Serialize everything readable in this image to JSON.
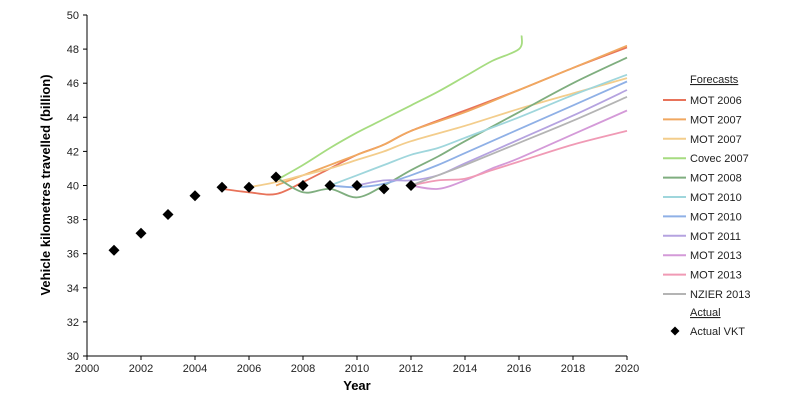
{
  "chart_data": {
    "type": "line",
    "xlabel": "Year",
    "ylabel": "Vehicle kilometres travelled (billion)",
    "xlim": [
      2000,
      2020
    ],
    "ylim": [
      30,
      50
    ],
    "xticks": [
      "2000",
      "2002",
      "2004",
      "2006",
      "2008",
      "2010",
      "2012",
      "2014",
      "2016",
      "2018",
      "2020"
    ],
    "yticks": [
      "30",
      "32",
      "34",
      "36",
      "38",
      "40",
      "42",
      "44",
      "46",
      "48",
      "50"
    ],
    "legend_heading_forecasts": "Forecasts",
    "legend_heading_actual": "Actual",
    "legend_position": "right",
    "series": [
      {
        "name": "MOT 2006",
        "color": "#e8735a",
        "points": [
          [
            2005,
            39.8
          ],
          [
            2006,
            39.6
          ],
          [
            2007,
            39.5
          ],
          [
            2008,
            40.2
          ],
          [
            2009,
            41.0
          ],
          [
            2010,
            41.8
          ],
          [
            2011,
            42.4
          ],
          [
            2012,
            43.2
          ],
          [
            2014,
            44.4
          ],
          [
            2016,
            45.6
          ],
          [
            2018,
            46.9
          ],
          [
            2020,
            48.1
          ]
        ]
      },
      {
        "name": "MOT 2007",
        "color": "#f0a860",
        "points": [
          [
            2007,
            40.0
          ],
          [
            2008,
            40.6
          ],
          [
            2009,
            41.2
          ],
          [
            2010,
            41.8
          ],
          [
            2011,
            42.4
          ],
          [
            2012,
            43.2
          ],
          [
            2014,
            44.3
          ],
          [
            2016,
            45.6
          ],
          [
            2018,
            46.9
          ],
          [
            2020,
            48.2
          ]
        ]
      },
      {
        "name": "MOT 2007",
        "color": "#f3cd8c",
        "points": [
          [
            2006,
            39.9
          ],
          [
            2007,
            40.2
          ],
          [
            2008,
            40.6
          ],
          [
            2009,
            41.0
          ],
          [
            2010,
            41.5
          ],
          [
            2011,
            42.0
          ],
          [
            2012,
            42.6
          ],
          [
            2014,
            43.5
          ],
          [
            2016,
            44.5
          ],
          [
            2018,
            45.4
          ],
          [
            2020,
            46.3
          ]
        ]
      },
      {
        "name": "Covec 2007",
        "color": "#a6dc80",
        "points": [
          [
            2007,
            40.3
          ],
          [
            2008,
            41.2
          ],
          [
            2009,
            42.2
          ],
          [
            2010,
            43.1
          ],
          [
            2011,
            43.9
          ],
          [
            2012,
            44.7
          ],
          [
            2013,
            45.5
          ],
          [
            2014,
            46.4
          ],
          [
            2015,
            47.3
          ],
          [
            2016,
            48.0
          ],
          [
            2016.1,
            48.8
          ]
        ]
      },
      {
        "name": "MOT 2008",
        "color": "#7fae7f",
        "points": [
          [
            2007,
            40.5
          ],
          [
            2008,
            39.6
          ],
          [
            2009,
            39.8
          ],
          [
            2010,
            39.3
          ],
          [
            2011,
            40.0
          ],
          [
            2012,
            40.9
          ],
          [
            2013,
            41.7
          ],
          [
            2014,
            42.6
          ],
          [
            2016,
            44.3
          ],
          [
            2018,
            46.0
          ],
          [
            2020,
            47.5
          ]
        ]
      },
      {
        "name": "MOT 2010",
        "color": "#9fd6dc",
        "points": [
          [
            2009,
            40.0
          ],
          [
            2010,
            40.6
          ],
          [
            2011,
            41.2
          ],
          [
            2012,
            41.8
          ],
          [
            2013,
            42.2
          ],
          [
            2014,
            42.8
          ],
          [
            2016,
            44.0
          ],
          [
            2018,
            45.3
          ],
          [
            2020,
            46.5
          ]
        ]
      },
      {
        "name": "MOT 2010",
        "color": "#8fb0e6",
        "points": [
          [
            2009,
            40.0
          ],
          [
            2010,
            39.9
          ],
          [
            2011,
            40.1
          ],
          [
            2012,
            40.6
          ],
          [
            2013,
            41.2
          ],
          [
            2014,
            41.9
          ],
          [
            2016,
            43.3
          ],
          [
            2018,
            44.7
          ],
          [
            2020,
            46.1
          ]
        ]
      },
      {
        "name": "MOT 2011",
        "color": "#b5a3e0",
        "points": [
          [
            2010,
            40.0
          ],
          [
            2011,
            40.3
          ],
          [
            2012,
            40.3
          ],
          [
            2013,
            40.6
          ],
          [
            2014,
            41.3
          ],
          [
            2016,
            42.7
          ],
          [
            2018,
            44.1
          ],
          [
            2020,
            45.6
          ]
        ]
      },
      {
        "name": "MOT 2013",
        "color": "#d49ad8",
        "points": [
          [
            2012,
            40.0
          ],
          [
            2013,
            39.8
          ],
          [
            2014,
            40.3
          ],
          [
            2015,
            41.0
          ],
          [
            2016,
            41.6
          ],
          [
            2018,
            43.0
          ],
          [
            2020,
            44.4
          ]
        ]
      },
      {
        "name": "MOT 2013",
        "color": "#f09ab5",
        "points": [
          [
            2012,
            40.0
          ],
          [
            2013,
            40.3
          ],
          [
            2014,
            40.4
          ],
          [
            2015,
            40.9
          ],
          [
            2016,
            41.4
          ],
          [
            2018,
            42.4
          ],
          [
            2020,
            43.2
          ]
        ]
      },
      {
        "name": "NZIER 2013",
        "color": "#b4b4b4",
        "points": [
          [
            2012,
            40.0
          ],
          [
            2013,
            40.6
          ],
          [
            2014,
            41.2
          ],
          [
            2016,
            42.5
          ],
          [
            2018,
            43.8
          ],
          [
            2020,
            45.2
          ]
        ]
      }
    ],
    "actual": {
      "name": "Actual VKT",
      "color": "#000000",
      "points": [
        [
          2001,
          36.2
        ],
        [
          2002,
          37.2
        ],
        [
          2003,
          38.3
        ],
        [
          2004,
          39.4
        ],
        [
          2005,
          39.9
        ],
        [
          2006,
          39.9
        ],
        [
          2007,
          40.5
        ],
        [
          2008,
          40.0
        ],
        [
          2009,
          40.0
        ],
        [
          2010,
          40.0
        ],
        [
          2011,
          39.8
        ],
        [
          2012,
          40.0
        ]
      ]
    }
  }
}
